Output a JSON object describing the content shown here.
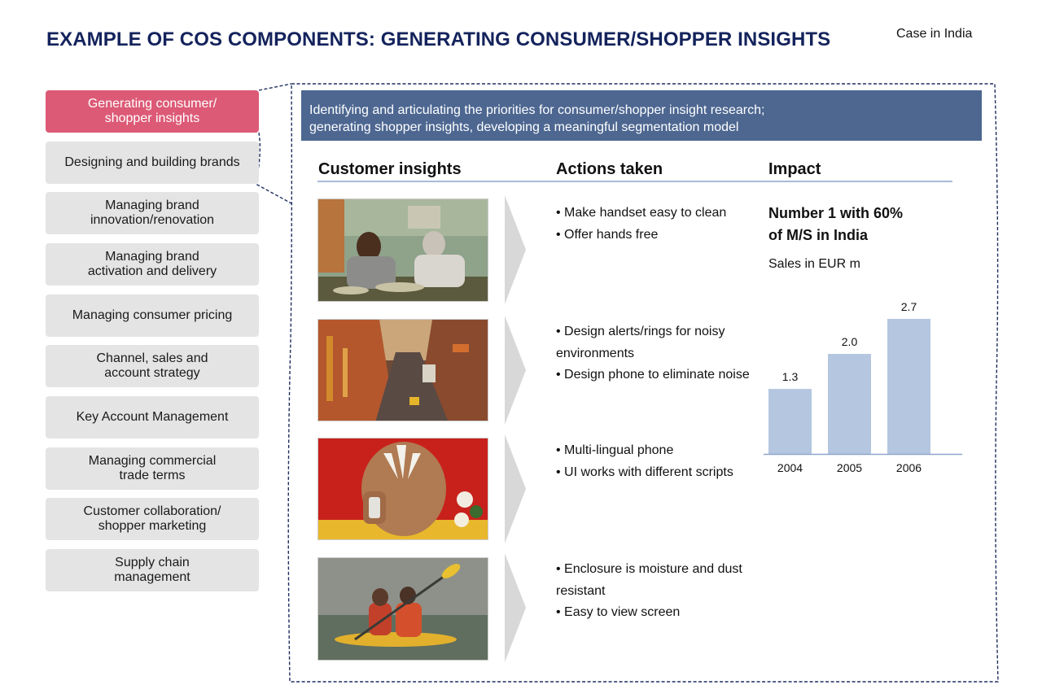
{
  "header": {
    "title": "EXAMPLE OF COS COMPONENTS: GENERATING CONSUMER/SHOPPER INSIGHTS",
    "case_label": "Case in India"
  },
  "sidebar": {
    "items": [
      {
        "label": "Generating consumer/\nshopper insights",
        "active": true
      },
      {
        "label": "Designing and building brands",
        "active": false
      },
      {
        "label": "Managing brand\ninnovation/renovation",
        "active": false
      },
      {
        "label": "Managing brand\nactivation and delivery",
        "active": false
      },
      {
        "label": "Managing consumer pricing",
        "active": false
      },
      {
        "label": "Channel, sales and\naccount strategy",
        "active": false
      },
      {
        "label": "Key Account Management",
        "active": false
      },
      {
        "label": "Managing commercial\ntrade terms",
        "active": false
      },
      {
        "label": "Customer collaboration/\nshopper marketing",
        "active": false
      },
      {
        "label": "Supply chain\nmanagement",
        "active": false
      }
    ],
    "active_color": "#dc5a76",
    "inactive_color": "#e4e4e4"
  },
  "banner": {
    "line1": "Identifying and articulating the priorities for consumer/shopper insight research;",
    "line2": "generating shopper insights, developing a meaningful segmentation model",
    "color": "#4d6791"
  },
  "columns": {
    "insights": "Customer insights",
    "actions": "Actions taken",
    "impact": "Impact"
  },
  "rows": [
    {
      "image": "men-eating-on-floor-photo",
      "actions": [
        "• Make handset easy to clean",
        "• Offer hands free"
      ]
    },
    {
      "image": "busy-city-street-photo",
      "actions": [
        "• Design alerts/rings for noisy",
        "environments",
        "• Design phone to eliminate noise"
      ]
    },
    {
      "image": "man-on-phone-photo",
      "actions": [
        "• Multi-lingual phone",
        "• UI works with different scripts"
      ]
    },
    {
      "image": "kayak-in-rain-photo",
      "actions": [
        "• Enclosure is moisture and dust",
        "resistant",
        "• Easy to view screen"
      ]
    }
  ],
  "impact": {
    "headline": "Number 1 with 60%\nof M/S in India",
    "sales_label": "Sales in EUR m"
  },
  "chart_data": {
    "type": "bar",
    "categories": [
      "2004",
      "2005",
      "2006"
    ],
    "values": [
      1.3,
      2.0,
      2.7
    ],
    "value_labels": [
      "1.3",
      "2.0",
      "2.7"
    ],
    "title": "",
    "ylabel": "",
    "ylim": [
      0,
      2.7
    ],
    "bar_color": "#b4c6e0",
    "axis_color": "#8fa6cc",
    "grid": false
  }
}
